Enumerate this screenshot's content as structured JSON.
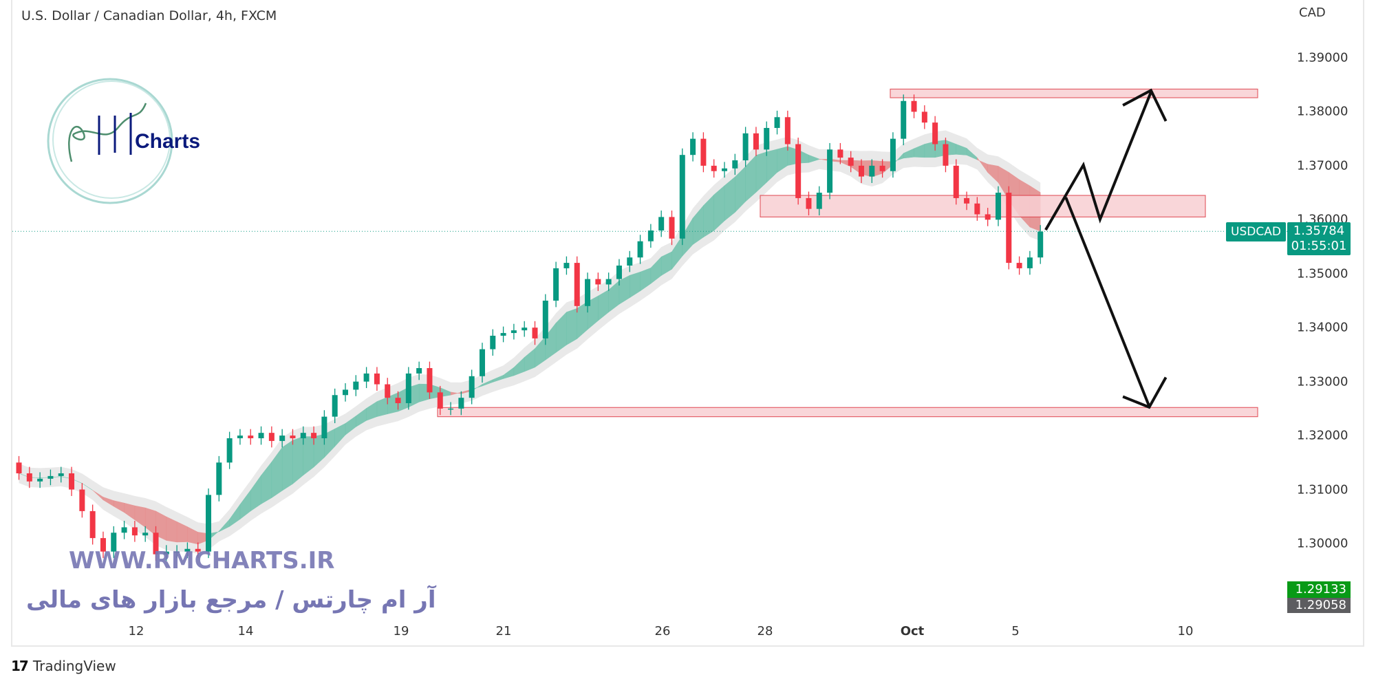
{
  "header": {
    "title": "U.S. Dollar / Canadian Dollar, 4h, FXCM"
  },
  "price_axis": {
    "unit": "CAD",
    "ticks": [
      "1.39000",
      "1.38000",
      "1.37000",
      "1.36000",
      "1.35000",
      "1.34000",
      "1.33000",
      "1.32000",
      "1.31000",
      "1.30000"
    ]
  },
  "time_axis": {
    "ticks": [
      {
        "label": "12",
        "bold": false
      },
      {
        "label": "14",
        "bold": false
      },
      {
        "label": "19",
        "bold": false
      },
      {
        "label": "21",
        "bold": false
      },
      {
        "label": "26",
        "bold": false
      },
      {
        "label": "28",
        "bold": false
      },
      {
        "label": "Oct",
        "bold": true
      },
      {
        "label": "5",
        "bold": false
      },
      {
        "label": "10",
        "bold": false
      }
    ]
  },
  "last_price": {
    "symbol": "USDCAD",
    "price": "1.35784",
    "countdown": "01:55:01",
    "color": "#089981"
  },
  "price_labels": {
    "high_label": "1.29133",
    "low_label": "1.29058"
  },
  "watermark": {
    "logo_text": "Charts",
    "url": "WWW.RMCHARTS.IR",
    "tagline": "آر ام چارتس / مرجع بازار های مالی"
  },
  "footer": {
    "brand": "TradingView"
  },
  "chart_data": {
    "type": "candlestick",
    "title": "U.S. Dollar / Canadian Dollar, 4h, FXCM",
    "ylabel": "CAD",
    "ylim": [
      1.2905,
      1.3935
    ],
    "grid": false,
    "colors": {
      "up": "#089981",
      "down": "#f23645",
      "ribbon_up": "#6cc0aa",
      "ribbon_down": "#e58a8a",
      "envelope": "#e3e3e3",
      "zone_fill": "#f8d0d3",
      "zone_border": "#e0454f"
    },
    "first_open": 1.315,
    "closes": [
      1.313,
      1.3115,
      1.312,
      1.3125,
      1.313,
      1.31,
      1.306,
      1.301,
      1.2985,
      1.302,
      1.303,
      1.3015,
      1.302,
      1.298,
      1.2985,
      1.2985,
      1.299,
      1.2985,
      1.309,
      1.315,
      1.3195,
      1.32,
      1.3195,
      1.3205,
      1.319,
      1.32,
      1.3195,
      1.3205,
      1.3195,
      1.3235,
      1.3275,
      1.3285,
      1.33,
      1.3315,
      1.3295,
      1.327,
      1.326,
      1.3315,
      1.3325,
      1.328,
      1.325,
      1.325,
      1.327,
      1.331,
      1.336,
      1.3385,
      1.339,
      1.3395,
      1.34,
      1.338,
      1.345,
      1.351,
      1.352,
      1.344,
      1.349,
      1.348,
      1.349,
      1.3515,
      1.353,
      1.356,
      1.358,
      1.3605,
      1.3565,
      1.372,
      1.375,
      1.37,
      1.369,
      1.3695,
      1.371,
      1.376,
      1.373,
      1.377,
      1.379,
      1.374,
      1.364,
      1.362,
      1.365,
      1.373,
      1.3715,
      1.37,
      1.368,
      1.37,
      1.369,
      1.375,
      1.382,
      1.38,
      1.378,
      1.374,
      1.37,
      1.364,
      1.363,
      1.361,
      1.36,
      1.365,
      1.352,
      1.351,
      1.353,
      1.3578
    ],
    "zones": [
      {
        "top": 1.3842,
        "bottom": 1.3826
      },
      {
        "top": 1.3645,
        "bottom": 1.3605
      },
      {
        "top": 1.3252,
        "bottom": 1.3235
      }
    ],
    "last_price": 1.35784
  }
}
